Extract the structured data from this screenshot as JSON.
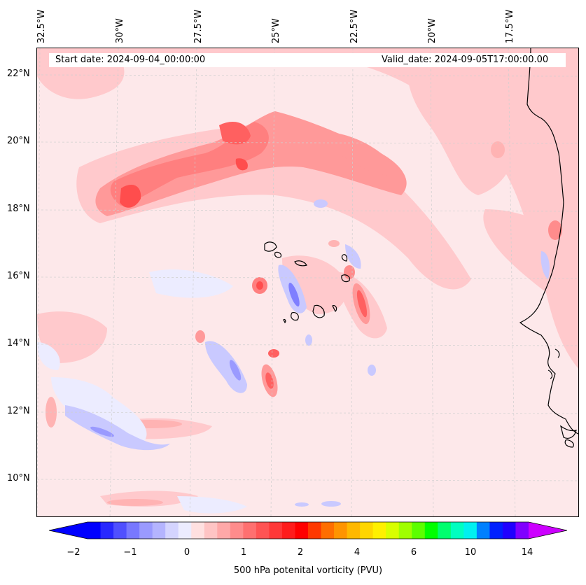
{
  "map": {
    "start_date": "Start date: 2024-09-04_00:00:00",
    "valid_date": "Valid_date: 2024-09-05T17:00:00.00",
    "longitude_labels": [
      "32.5°W",
      "30°W",
      "27.5°W",
      "25°W",
      "22.5°W",
      "20°W",
      "17.5°W"
    ],
    "latitude_labels": [
      "22°N",
      "20°N",
      "18°N",
      "16°N",
      "14°N",
      "12°N",
      "10°N"
    ],
    "extent": {
      "lon_min": -33.3,
      "lon_max": -15.5,
      "lat_min": 8.9,
      "lat_max": 22.8
    },
    "field": "500 hPa potential vorticity",
    "colors": {
      "neg_strong": "#2a2aff",
      "neg_mid": "#9a9aff",
      "neg_light": "#ececff",
      "pos_light": "#fde8ea",
      "pos_mid": "#ffc9cc",
      "pos_strong": "#ff9999",
      "pos_max": "#ff4d4d",
      "coastline": "#000000"
    }
  },
  "colorbar": {
    "label": "500 hPa potenital vorticity (PVU)",
    "tick_labels": [
      "−2",
      "−1",
      "0",
      "1",
      "2",
      "4",
      "6",
      "10",
      "14"
    ],
    "colors": [
      "#0000ff",
      "#2828ff",
      "#5050ff",
      "#7878ff",
      "#9a9aff",
      "#b4b4ff",
      "#d4d4ff",
      "#ececff",
      "#ffe0e0",
      "#ffc4c4",
      "#ffa8a8",
      "#ff8c8c",
      "#ff7070",
      "#ff5454",
      "#ff3838",
      "#ff1c1c",
      "#ff0000",
      "#ff3800",
      "#ff6e00",
      "#ff9400",
      "#ffb800",
      "#ffd600",
      "#fff000",
      "#d8ff00",
      "#a0ff00",
      "#5cff00",
      "#00ff00",
      "#00ff6e",
      "#00ffc0",
      "#00f0f0",
      "#0080ff",
      "#0020ff",
      "#2000ff",
      "#8000ff"
    ],
    "extend_low_color": "#0000ff",
    "extend_high_color": "#cc00ff"
  }
}
